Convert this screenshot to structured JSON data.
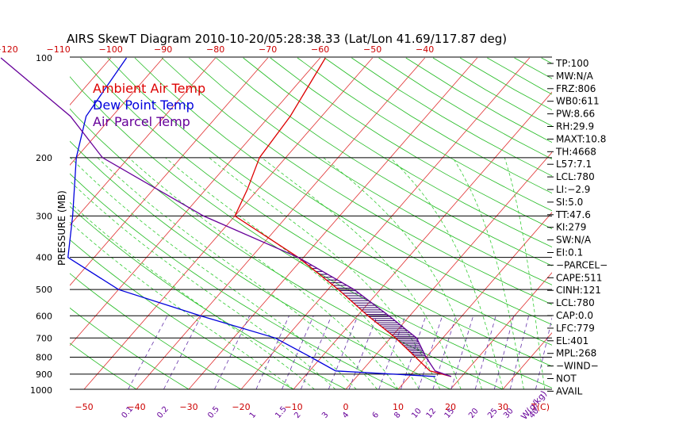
{
  "chart_data": {
    "type": "line",
    "title": "AIRS SkewT Diagram 2010-10-20/05:28:38.33 (Lat/Lon 41.69/117.87 deg)",
    "ylabel": "PRESSURE (MB)",
    "xlabel": "T(C)",
    "mixing_label": "W(g/kg)",
    "pressure_levels": [
      100,
      200,
      300,
      400,
      500,
      600,
      700,
      800,
      900,
      1000
    ],
    "pressure_labels": [
      "100",
      "200",
      "300",
      "400",
      "500",
      "600",
      "700",
      "800",
      "900",
      "1000"
    ],
    "top_temp_ticks": [
      -120,
      -110,
      -100,
      -90,
      -80,
      -70,
      -60,
      -50,
      -40
    ],
    "top_temp_labels": [
      "−120",
      "−110",
      "−100",
      "−90",
      "−80",
      "−70",
      "−60",
      "−50",
      "−40"
    ],
    "bottom_temp_ticks": [
      -50,
      -40,
      -30,
      -20,
      -10,
      0,
      10,
      20,
      30
    ],
    "bottom_temp_labels": [
      "−50",
      "−40",
      "−30",
      "−20",
      "−10",
      "0",
      "10",
      "20",
      "30"
    ],
    "mixing_ratio_values": [
      0.1,
      0.2,
      0.5,
      1,
      1.5,
      2,
      3,
      4,
      6,
      8,
      10,
      12,
      15,
      20,
      25,
      30,
      40
    ],
    "mixing_ratio_labels": [
      "0.1",
      "0.2",
      "0.5",
      "1",
      "1.5",
      "2",
      "3",
      "4",
      "6",
      "8",
      "10",
      "12",
      "15",
      "20",
      "25",
      "30",
      "40"
    ],
    "legend": [
      {
        "name": "Ambient Air Temp",
        "color": "#dd0000"
      },
      {
        "name": "Dew Point Temp",
        "color": "#0000dd"
      },
      {
        "name": "Air Parcel Temp",
        "color": "#660099"
      }
    ],
    "series": [
      {
        "name": "Ambient Air Temp",
        "color": "#dd0000",
        "points": [
          [
            915,
            18
          ],
          [
            880,
            13
          ],
          [
            800,
            8
          ],
          [
            700,
            1
          ],
          [
            600,
            -8
          ],
          [
            500,
            -18
          ],
          [
            400,
            -31
          ],
          [
            300,
            -50
          ],
          [
            250,
            -52
          ],
          [
            200,
            -55
          ],
          [
            150,
            -56
          ],
          [
            100,
            -59
          ]
        ]
      },
      {
        "name": "Dew Point Temp",
        "color": "#0000dd",
        "points": [
          [
            915,
            15
          ],
          [
            880,
            -5
          ],
          [
            800,
            -12
          ],
          [
            700,
            -22
          ],
          [
            600,
            -40
          ],
          [
            500,
            -60
          ],
          [
            400,
            -75
          ],
          [
            300,
            -81
          ],
          [
            200,
            -90
          ],
          [
            150,
            -95
          ],
          [
            100,
            -97
          ]
        ]
      },
      {
        "name": "Air Parcel Temp",
        "color": "#660099",
        "points": [
          [
            915,
            18
          ],
          [
            880,
            14
          ],
          [
            800,
            10
          ],
          [
            700,
            5
          ],
          [
            600,
            -4
          ],
          [
            500,
            -15
          ],
          [
            400,
            -31
          ],
          [
            300,
            -56
          ],
          [
            200,
            -85
          ],
          [
            150,
            -98
          ],
          [
            100,
            -121
          ]
        ]
      }
    ],
    "indices": [
      "TP:100",
      "MW:N/A",
      "FRZ:806",
      "WB0:611",
      "PW:8.66",
      "RH:29.9",
      "MAXT:10.8",
      "TH:4668",
      "L57:7.1",
      "LCL:780",
      "LI:−2.9",
      "SI:5.0",
      "TT:47.6",
      "KI:279",
      "SW:N/A",
      "EI:0.1",
      "−PARCEL−",
      "CAPE:511",
      "CINH:121",
      "LCL:780",
      "CAP:0.0",
      "LFC:779",
      "EL:401",
      "MPL:268",
      "−WIND−",
      "NOT",
      "AVAIL"
    ]
  }
}
